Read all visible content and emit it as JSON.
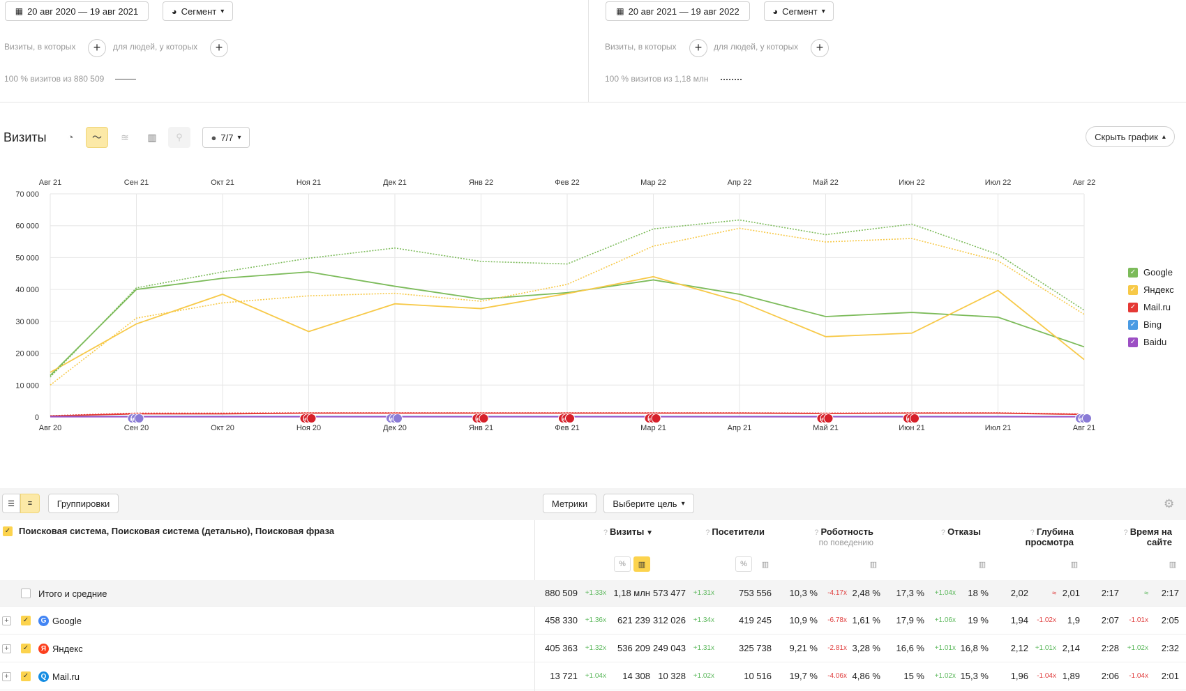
{
  "segments": [
    {
      "date_range": "20 авг 2020 — 19 авг 2021",
      "segment_label": "Сегмент",
      "visits_which": "Визиты, в которых",
      "people_which": "для людей, у которых",
      "summary": "100 % визитов из 880 509"
    },
    {
      "date_range": "20 авг 2021 — 19 авг 2022",
      "segment_label": "Сегмент",
      "visits_which": "Визиты, в которых",
      "people_which": "для людей, у которых",
      "summary": "100 % визитов из 1,18 млн"
    }
  ],
  "report": {
    "title": "Визиты",
    "annotations_label": "7/7",
    "hide_chart_label": "Скрыть график"
  },
  "chart_data": {
    "type": "line",
    "x_top": [
      "Авг 21",
      "Сен 21",
      "Окт 21",
      "Ноя 21",
      "Дек 21",
      "Янв 22",
      "Фев 22",
      "Мар 22",
      "Апр 22",
      "Май 22",
      "Июн 22",
      "Июл 22",
      "Авг 22"
    ],
    "x_bottom": [
      "Авг 20",
      "Сен 20",
      "Окт 20",
      "Ноя 20",
      "Дек 20",
      "Янв 21",
      "Фев 21",
      "Мар 21",
      "Апр 21",
      "Май 21",
      "Июн 21",
      "Июл 21",
      "Авг 21"
    ],
    "y_ticks": [
      "70 000",
      "60 000",
      "50 000",
      "40 000",
      "30 000",
      "20 000",
      "10 000",
      "0"
    ],
    "ylim": [
      0,
      70000
    ],
    "series": [
      {
        "name": "Google",
        "period": "2020-2021",
        "style": "solid",
        "color": "#7cbb5a",
        "values": [
          13000,
          40000,
          43500,
          45500,
          41000,
          37000,
          39000,
          43000,
          38500,
          31500,
          32800,
          31300,
          22000
        ]
      },
      {
        "name": "Яндекс",
        "period": "2020-2021",
        "style": "solid",
        "color": "#f7c948",
        "values": [
          14000,
          29200,
          38500,
          26800,
          35500,
          34000,
          38700,
          44000,
          36300,
          25200,
          26300,
          39700,
          18000
        ]
      },
      {
        "name": "Google",
        "period": "2021-2022",
        "style": "dotted",
        "color": "#7cbb5a",
        "values": [
          12500,
          40500,
          45500,
          49800,
          53000,
          48800,
          48000,
          59000,
          61800,
          57200,
          60500,
          51000,
          33500
        ]
      },
      {
        "name": "Яндекс",
        "period": "2021-2022",
        "style": "dotted",
        "color": "#f7c948",
        "values": [
          10000,
          31000,
          35800,
          38000,
          38800,
          36300,
          41600,
          53600,
          59200,
          54900,
          56000,
          49000,
          32200
        ]
      },
      {
        "name": "Mail.ru",
        "period": "2020-2021",
        "style": "solid",
        "color": "#e53935",
        "values": [
          300,
          1000,
          1000,
          1200,
          1200,
          1200,
          1200,
          1200,
          1200,
          1100,
          1200,
          1200,
          800
        ]
      },
      {
        "name": "Mail.ru",
        "period": "2021-2022",
        "style": "dotted",
        "color": "#e53935",
        "values": [
          400,
          1200,
          1200,
          1300,
          1300,
          1300,
          1300,
          1300,
          1300,
          1200,
          1300,
          1300,
          900
        ]
      },
      {
        "name": "Bing",
        "period": "2020-2021",
        "style": "solid",
        "color": "#4a9be3",
        "values": [
          100,
          150,
          150,
          150,
          150,
          150,
          150,
          150,
          150,
          150,
          150,
          150,
          100
        ]
      },
      {
        "name": "Baidu",
        "period": "2020-2021",
        "style": "solid",
        "color": "#9c4fc4",
        "values": [
          50,
          60,
          60,
          60,
          60,
          60,
          60,
          60,
          60,
          60,
          60,
          60,
          50
        ]
      }
    ],
    "legend": [
      {
        "name": "Google",
        "color": "#7cbb5a"
      },
      {
        "name": "Яндекс",
        "color": "#f7c948"
      },
      {
        "name": "Mail.ru",
        "color": "#e53935"
      },
      {
        "name": "Bing",
        "color": "#4a9be3"
      },
      {
        "name": "Baidu",
        "color": "#9c4fc4"
      }
    ],
    "annotation_markers": [
      {
        "index": 1,
        "type": "м",
        "color": "#8a7bd6"
      },
      {
        "index": 3,
        "type": "н",
        "color": "#d6202a"
      },
      {
        "index": 4,
        "type": "м",
        "color": "#8a7bd6"
      },
      {
        "index": 5,
        "type": "н",
        "color": "#d6202a"
      },
      {
        "index": 6,
        "type": "н",
        "color": "#d6202a"
      },
      {
        "index": 7,
        "type": "н",
        "color": "#d6202a"
      },
      {
        "index": 9,
        "type": "н",
        "color": "#d6202a"
      },
      {
        "index": 10,
        "type": "н",
        "color": "#d6202a"
      },
      {
        "index": 12,
        "type": "м",
        "color": "#8a7bd6"
      }
    ]
  },
  "table_toolbar": {
    "groupings": "Группировки",
    "metrics": "Метрики",
    "goal": "Выберите цель"
  },
  "table": {
    "dimension_header": "Поисковая система, Поисковая система (детально), Поисковая фраза",
    "columns": [
      {
        "name": "Визиты",
        "sort": "▼"
      },
      {
        "name": "Посетители"
      },
      {
        "name": "Роботность",
        "sub": "по поведению"
      },
      {
        "name": "Отказы"
      },
      {
        "name": "Глубина",
        "sub": "просмотра"
      },
      {
        "name": "Время на",
        "sub": "сайте"
      }
    ],
    "totals": {
      "label": "Итого и средние",
      "cells": [
        "880 509",
        "+1.33x",
        "1,18 млн",
        "573 477",
        "+1.31x",
        "753 556",
        "10,3 %",
        "-4.17x",
        "2,48 %",
        "17,3 %",
        "+1.04x",
        "18 %",
        "2,02",
        "≈",
        "2,01",
        "2:17",
        "≈",
        "2:17"
      ]
    },
    "rows": [
      {
        "label": "Google",
        "icon": "G",
        "icon_color": "#4285f4",
        "cells": [
          "458 330",
          "+1.36x",
          "621 239",
          "312 026",
          "+1.34x",
          "419 245",
          "10,9 %",
          "-6.78x",
          "1,61 %",
          "17,9 %",
          "+1.06x",
          "19 %",
          "1,94",
          "-1.02x",
          "1,9",
          "2:07",
          "-1.01x",
          "2:05"
        ]
      },
      {
        "label": "Яндекс",
        "icon": "Я",
        "icon_color": "#fc3f1d",
        "cells": [
          "405 363",
          "+1.32x",
          "536 209",
          "249 043",
          "+1.31x",
          "325 738",
          "9,21 %",
          "-2.81x",
          "3,28 %",
          "16,6 %",
          "+1.01x",
          "16,8 %",
          "2,12",
          "+1.01x",
          "2,14",
          "2:28",
          "+1.02x",
          "2:32"
        ]
      },
      {
        "label": "Mail.ru",
        "icon": "Q",
        "icon_color": "#168de2",
        "cells": [
          "13 721",
          "+1.04x",
          "14 308",
          "10 328",
          "+1.02x",
          "10 516",
          "19,7 %",
          "-4.06x",
          "4,86 %",
          "15 %",
          "+1.02x",
          "15,3 %",
          "1,96",
          "-1.04x",
          "1,89",
          "2:06",
          "-1.04x",
          "2:01"
        ]
      }
    ]
  }
}
